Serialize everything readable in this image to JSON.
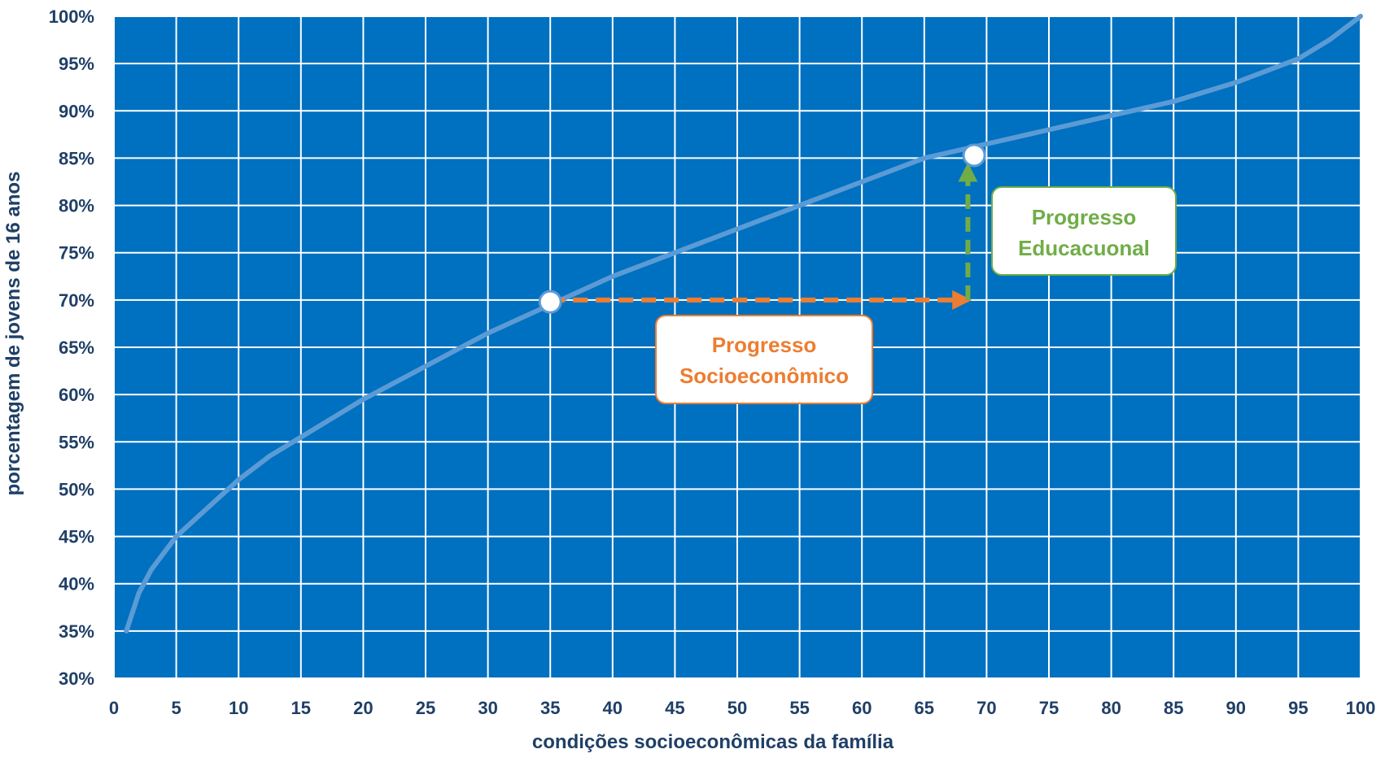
{
  "chart_data": {
    "type": "line",
    "title": "",
    "xlabel": "condições socioeconômicas da família",
    "ylabel": "porcentagem de jovens de 16 anos",
    "xlim": [
      0,
      100
    ],
    "ylim": [
      30,
      100
    ],
    "x_ticks": [
      "0",
      "5",
      "10",
      "15",
      "20",
      "25",
      "30",
      "35",
      "40",
      "45",
      "50",
      "55",
      "60",
      "65",
      "70",
      "75",
      "80",
      "85",
      "90",
      "95",
      "100"
    ],
    "y_ticks": [
      "30%",
      "35%",
      "40%",
      "45%",
      "50%",
      "55%",
      "60%",
      "65%",
      "70%",
      "75%",
      "80%",
      "85%",
      "90%",
      "95%",
      "100%"
    ],
    "grid": true,
    "colors": {
      "plot_background": "#0070C0",
      "grid": "#ffffff",
      "line": "#5B9BD5",
      "socio": "#ED7D31",
      "edu": "#70AD47",
      "text": "#1f3f66"
    },
    "series": [
      {
        "x": [
          1,
          2,
          3,
          5,
          7.5,
          10,
          12.5,
          15,
          20,
          25,
          30,
          35,
          40,
          45,
          50,
          55,
          60,
          65,
          70,
          75,
          80,
          85,
          90,
          95,
          97.5,
          100
        ],
        "y": [
          35,
          39,
          41.5,
          45,
          48,
          51,
          53.5,
          55.5,
          59.5,
          63,
          66.5,
          69.5,
          72.5,
          75,
          77.5,
          80,
          82.5,
          85,
          86.5,
          88,
          89.5,
          91,
          93,
          95.5,
          97.5,
          100
        ]
      }
    ],
    "annotations": [
      {
        "label": "Progresso Socioeconômico",
        "lines": [
          "Progresso",
          "Socioeconômico"
        ],
        "color": "#ED7D31",
        "from": [
          35,
          70
        ],
        "to": [
          68.5,
          70
        ]
      },
      {
        "label": "Progresso Educacuonal",
        "lines": [
          "Progresso",
          "Educacuonal"
        ],
        "color": "#70AD47",
        "from": [
          68.5,
          70
        ],
        "to": [
          68.5,
          85
        ]
      }
    ],
    "highlight_points": [
      {
        "x": 35,
        "y": 69.8
      },
      {
        "x": 69,
        "y": 85.3
      }
    ]
  }
}
